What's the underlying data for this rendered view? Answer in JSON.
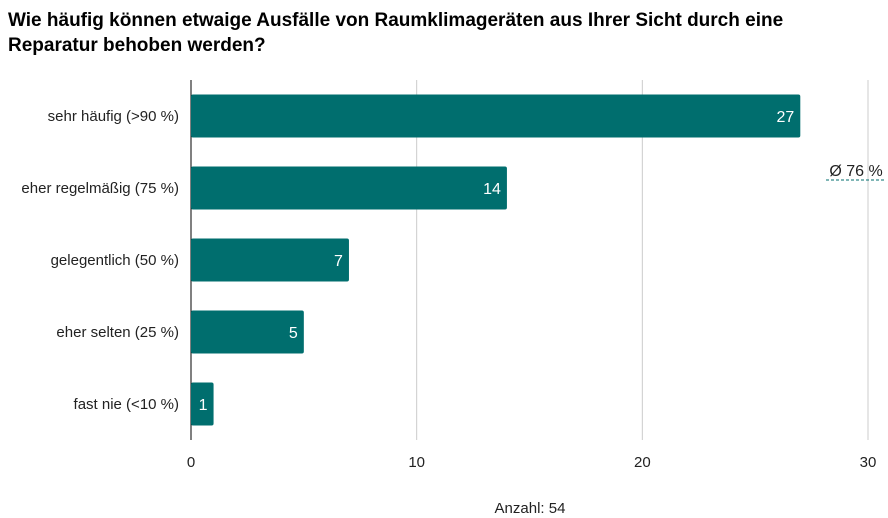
{
  "chart_data": {
    "type": "bar",
    "orientation": "horizontal",
    "title": "Wie häufig können etwaige Ausfälle von Raumklimageräten aus Ihrer Sicht durch eine Reparatur behoben werden?",
    "categories": [
      "sehr häufig (>90 %)",
      "eher regelmäßig (75 %)",
      "gelegentlich (50 %)",
      "eher selten (25 %)",
      "fast nie (<10 %)"
    ],
    "values": [
      27,
      14,
      7,
      5,
      1
    ],
    "color": "#006e6e",
    "xlim": [
      0,
      30
    ],
    "xticks": [
      0,
      10,
      20,
      30
    ],
    "xlabel": "Anzahl: 54",
    "annotation": "Ø 76 %",
    "grid": true
  }
}
